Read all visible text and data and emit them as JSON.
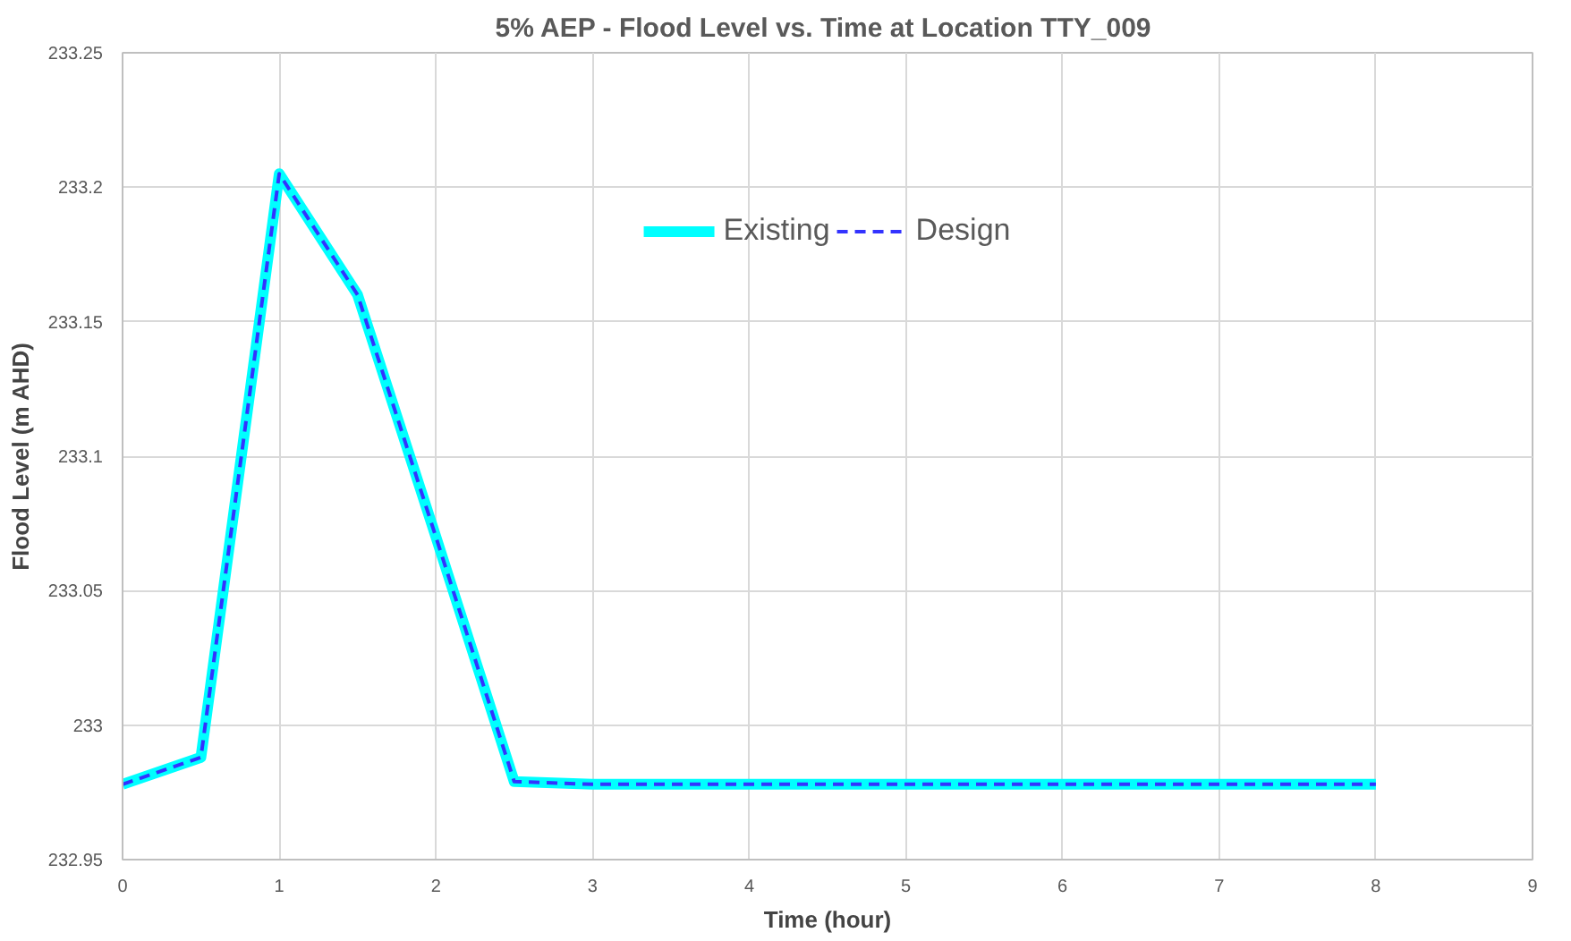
{
  "chart_data": {
    "type": "line",
    "title": "5% AEP - Flood Level vs. Time at  Location TTY_009",
    "xlabel": "Time (hour)",
    "ylabel": "Flood Level (m AHD)",
    "x": [
      0,
      0.5,
      1,
      1.5,
      2,
      2.5,
      3,
      4,
      5,
      6,
      7,
      8
    ],
    "series": [
      {
        "name": "Existing",
        "color": "#00ffff",
        "line_style": "solid",
        "values": [
          232.978,
          232.988,
          233.205,
          233.16,
          233.07,
          232.979,
          232.978,
          232.978,
          232.978,
          232.978,
          232.978,
          232.978
        ]
      },
      {
        "name": "Design",
        "color": "#3333ff",
        "line_style": "dashed",
        "values": [
          232.978,
          232.988,
          233.205,
          233.16,
          233.07,
          232.979,
          232.978,
          232.978,
          232.978,
          232.978,
          232.978,
          232.978
        ]
      }
    ],
    "xlim": [
      0,
      9
    ],
    "xticks": [
      0,
      1,
      2,
      3,
      4,
      5,
      6,
      7,
      8,
      9
    ],
    "ylim": [
      232.95,
      233.25
    ],
    "yticks": [
      232.95,
      233,
      233.05,
      233.1,
      233.15,
      233.2,
      233.25
    ],
    "grid": true,
    "legend": "top",
    "marker": "none"
  }
}
